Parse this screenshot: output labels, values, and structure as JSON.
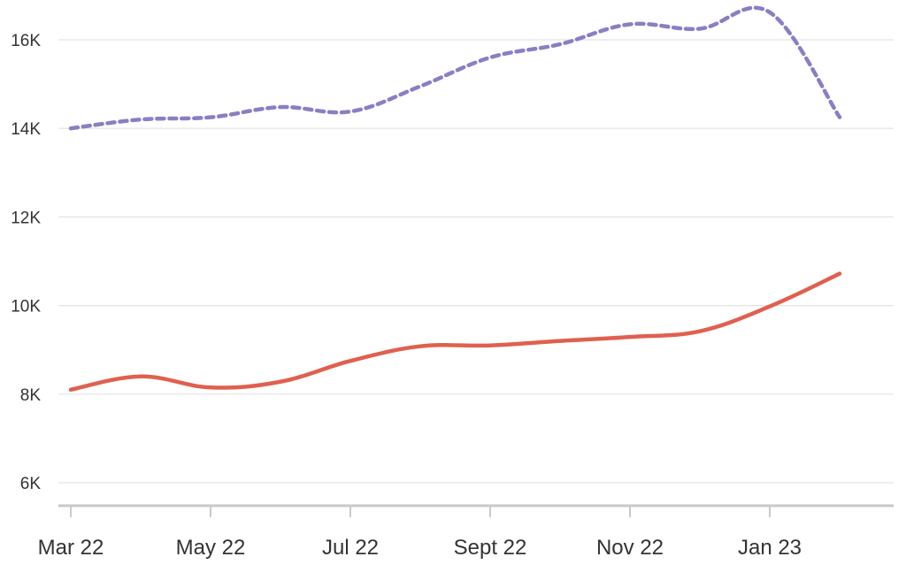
{
  "chart_data": {
    "type": "line",
    "title": "",
    "xlabel": "",
    "ylabel": "",
    "x": [
      "2022-03",
      "2022-04",
      "2022-05",
      "2022-06",
      "2022-07",
      "2022-08",
      "2022-09",
      "2022-10",
      "2022-11",
      "2022-12",
      "2023-01",
      "2023-02"
    ],
    "x_tick_labels": [
      "Mar 22",
      "May 22",
      "Jul 22",
      "Sept 22",
      "Nov 22",
      "Jan 23"
    ],
    "x_tick_positions": [
      "2022-03",
      "2022-05",
      "2022-07",
      "2022-09",
      "2022-11",
      "2023-01"
    ],
    "y_ticks": [
      6000,
      8000,
      10000,
      12000,
      14000,
      16000
    ],
    "y_tick_labels": [
      "6K",
      "8K",
      "10K",
      "12K",
      "14K",
      "16K"
    ],
    "ylim": [
      5600,
      16800
    ],
    "grid": true,
    "series": [
      {
        "color": "#8a7fc4",
        "dash": "dotted",
        "values": [
          14000,
          14200,
          14250,
          14480,
          14380,
          14950,
          15600,
          15900,
          16350,
          16250,
          16620,
          14250
        ]
      },
      {
        "color": "#e0604f",
        "dash": "solid",
        "values": [
          8100,
          8400,
          8150,
          8280,
          8750,
          9080,
          9100,
          9200,
          9290,
          9420,
          9980,
          10720
        ]
      }
    ]
  }
}
